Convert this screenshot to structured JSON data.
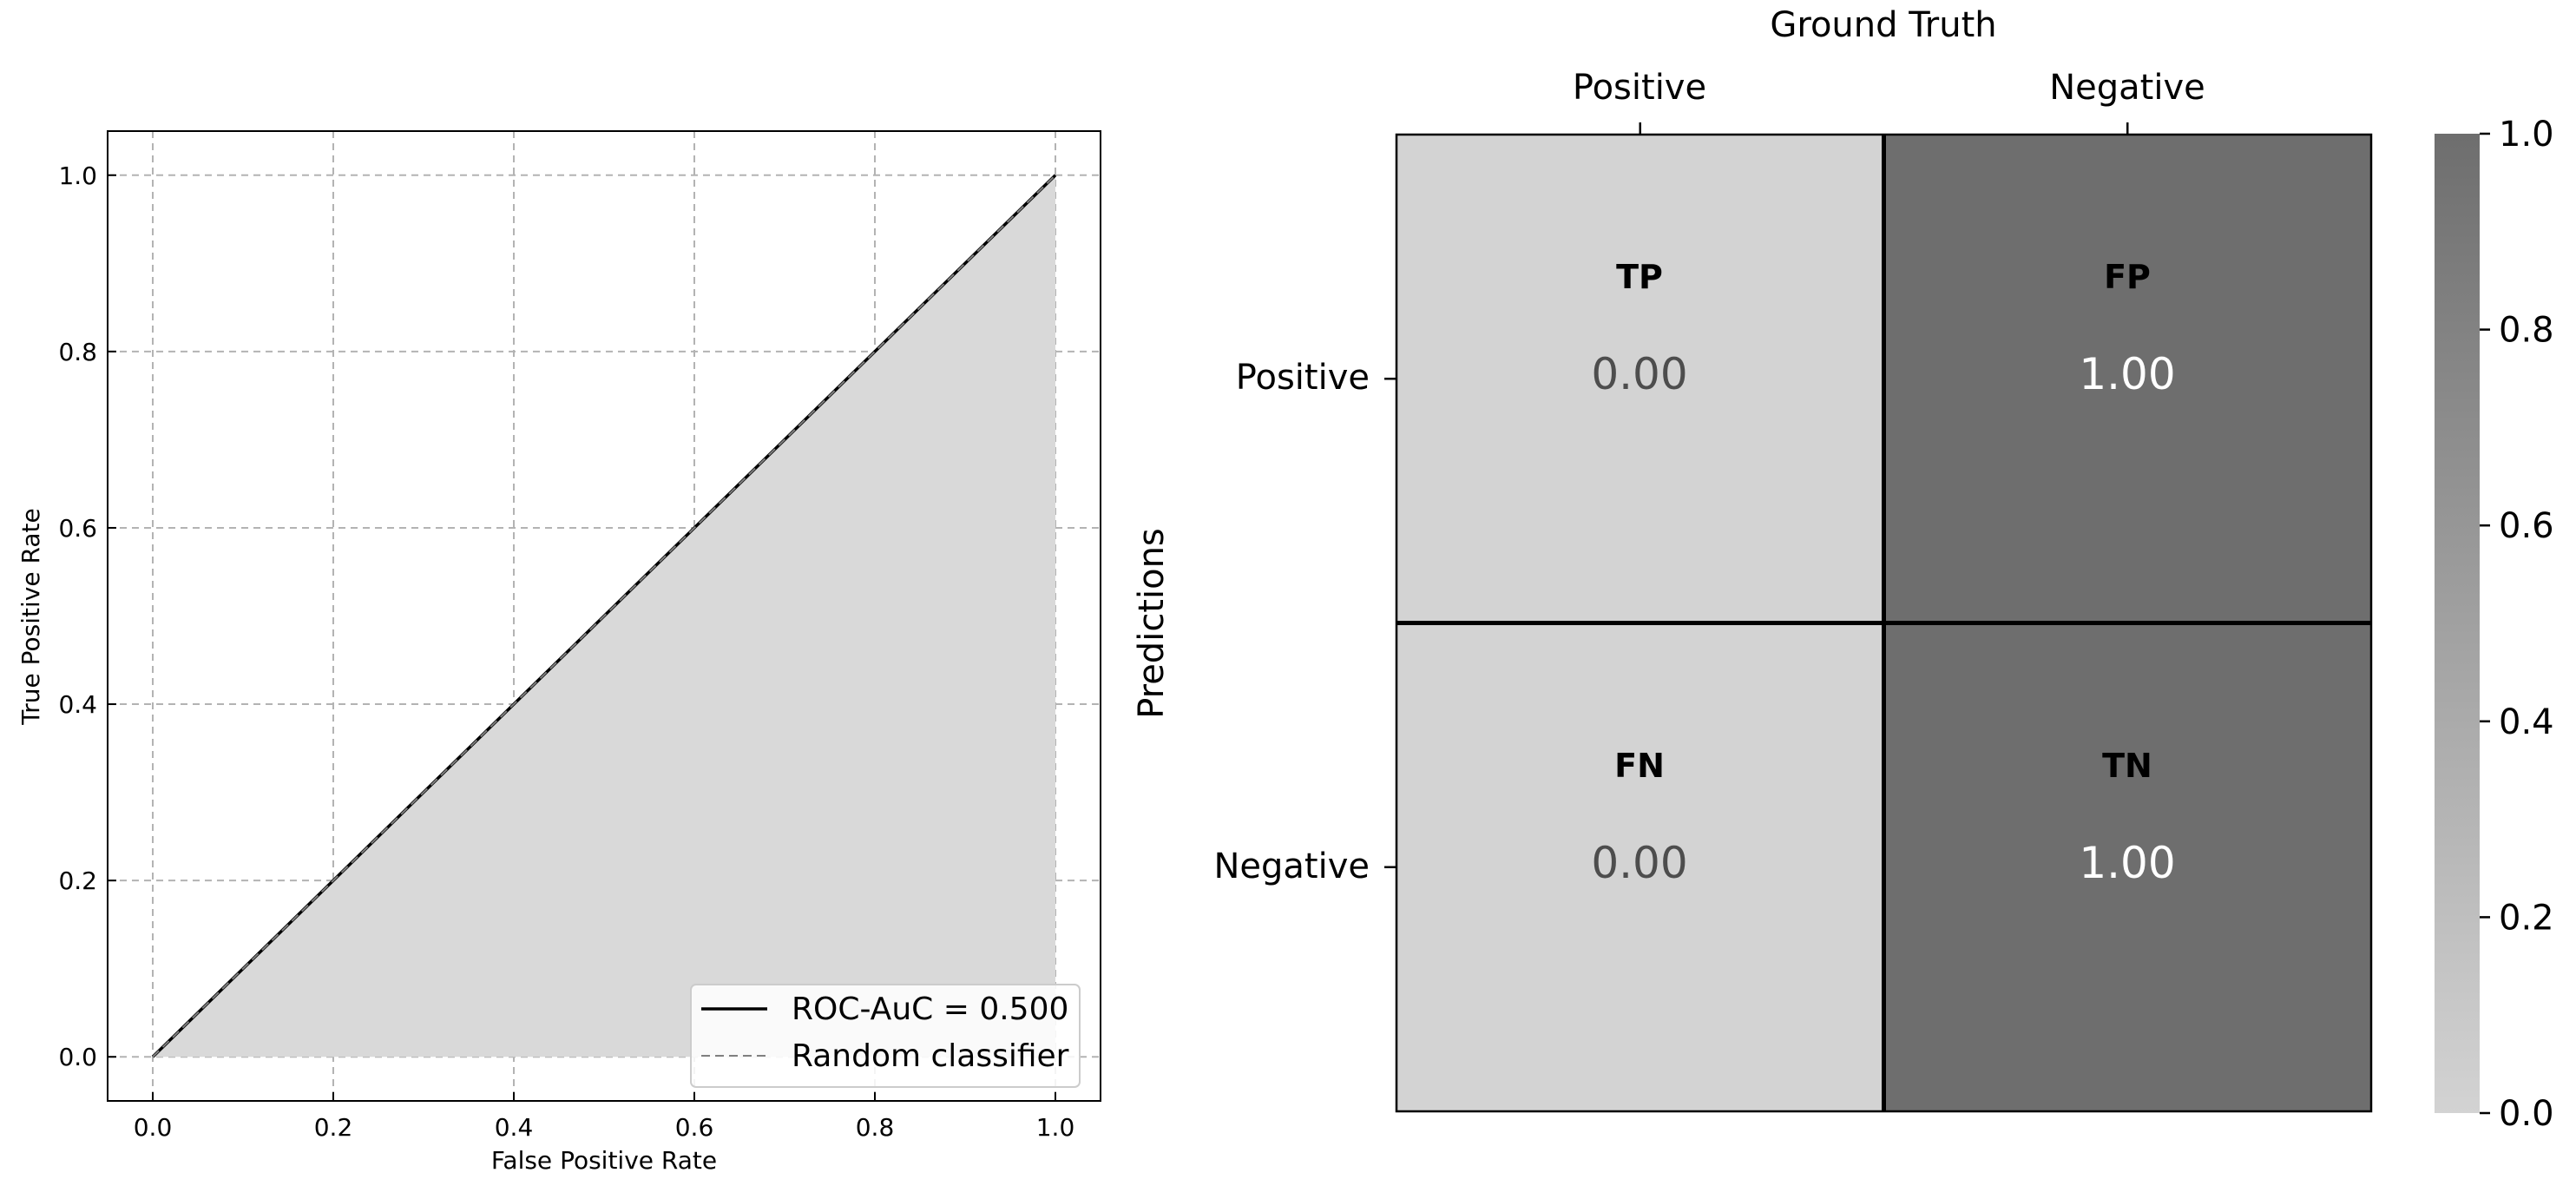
{
  "chart_data": [
    {
      "type": "line",
      "xlabel": "False Positive Rate",
      "ylabel": "True Positive Rate",
      "xlim": [
        -0.05,
        1.05
      ],
      "ylim": [
        -0.05,
        1.05
      ],
      "xticks": [
        0.0,
        0.2,
        0.4,
        0.6,
        0.8,
        1.0
      ],
      "yticks": [
        0.0,
        0.2,
        0.4,
        0.6,
        0.8,
        1.0
      ],
      "tick_labels": [
        "0.0",
        "0.2",
        "0.4",
        "0.6",
        "0.8",
        "1.0"
      ],
      "grid": true,
      "legend_position": "bottom-right",
      "series": [
        {
          "name": "ROC-AuC = 0.500",
          "style": "solid",
          "color": "#000000",
          "x": [
            0.0,
            1.0
          ],
          "y": [
            0.0,
            1.0
          ],
          "fill_under": true,
          "fill_color": "#d9d9d9"
        },
        {
          "name": "Random classifier",
          "style": "dashed",
          "color": "#808080",
          "x": [
            0.0,
            1.0
          ],
          "y": [
            0.0,
            1.0
          ]
        }
      ]
    },
    {
      "type": "heatmap",
      "title": "Ground Truth",
      "ylabel": "Predictions",
      "columns": [
        "Positive",
        "Negative"
      ],
      "rows": [
        "Positive",
        "Negative"
      ],
      "cells": [
        [
          {
            "label": "TP",
            "value": "0.00",
            "v": 0.0
          },
          {
            "label": "FP",
            "value": "1.00",
            "v": 1.0
          }
        ],
        [
          {
            "label": "FN",
            "value": "0.00",
            "v": 0.0
          },
          {
            "label": "TN",
            "value": "1.00",
            "v": 1.0
          }
        ]
      ],
      "colorbar": {
        "range": [
          0.0,
          1.0
        ],
        "ticks": [
          "0.0",
          "0.2",
          "0.4",
          "0.6",
          "0.8",
          "1.0"
        ],
        "color_min": "#d3d3d3",
        "color_max": "#6e6e6e"
      }
    }
  ]
}
